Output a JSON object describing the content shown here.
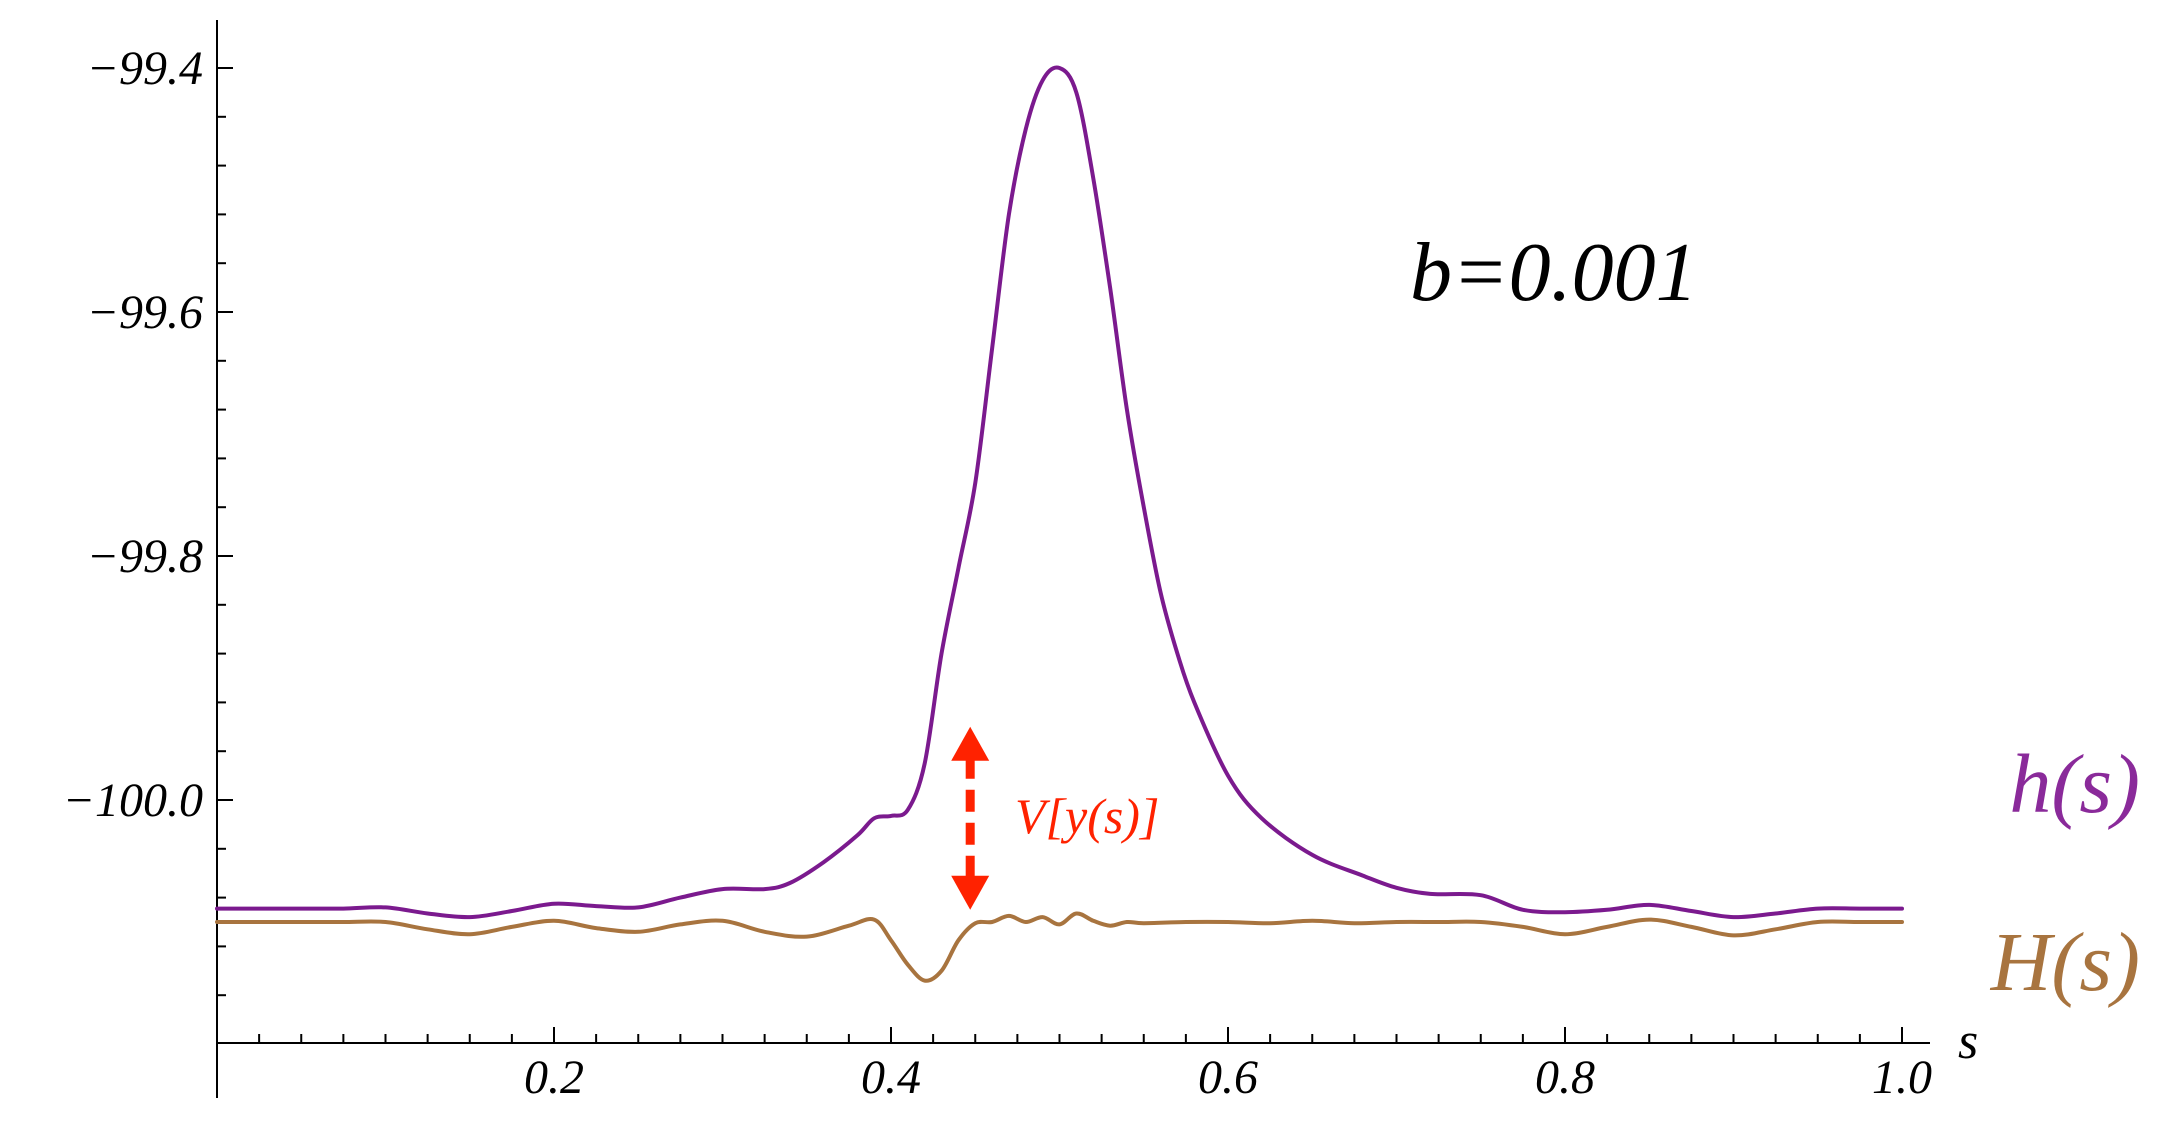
{
  "chart_data": {
    "type": "line",
    "xlabel": "s",
    "ylabel": "",
    "xlim": [
      0,
      1.0
    ],
    "ylim": [
      -100.25,
      -99.35
    ],
    "grid": false,
    "legend": "none",
    "x_ticks": [
      {
        "value": 0.2,
        "label": "0.2"
      },
      {
        "value": 0.4,
        "label": "0.4"
      },
      {
        "value": 0.6,
        "label": "0.6"
      },
      {
        "value": 0.8,
        "label": "0.8"
      },
      {
        "value": 1.0,
        "label": "1.0"
      }
    ],
    "y_ticks": [
      {
        "value": -99.4,
        "label": "−99.4"
      },
      {
        "value": -99.6,
        "label": "−99.6"
      },
      {
        "value": -99.8,
        "label": "−99.8"
      },
      {
        "value": -100.0,
        "label": "−100.0"
      }
    ],
    "parameter_label": "b=0.001",
    "annotation": {
      "text": "V[y(s)]",
      "x": 0.447,
      "y_top": -99.94,
      "y_bottom": -100.09,
      "color": "#ff2200"
    },
    "series": [
      {
        "name": "h(s)",
        "color": "#7b1a8e",
        "label_color": "#8a2a9a",
        "x": [
          0.0,
          0.025,
          0.05,
          0.075,
          0.1,
          0.125,
          0.15,
          0.175,
          0.2,
          0.225,
          0.25,
          0.275,
          0.3,
          0.325,
          0.34,
          0.36,
          0.38,
          0.39,
          0.4,
          0.41,
          0.42,
          0.43,
          0.44,
          0.45,
          0.46,
          0.47,
          0.48,
          0.49,
          0.5,
          0.51,
          0.52,
          0.53,
          0.54,
          0.55,
          0.56,
          0.57,
          0.58,
          0.6,
          0.62,
          0.65,
          0.68,
          0.7,
          0.72,
          0.75,
          0.775,
          0.8,
          0.825,
          0.85,
          0.875,
          0.9,
          0.925,
          0.95,
          0.975,
          1.0
        ],
        "values": [
          -100.089,
          -100.089,
          -100.089,
          -100.089,
          -100.088,
          -100.093,
          -100.096,
          -100.091,
          -100.085,
          -100.087,
          -100.088,
          -100.08,
          -100.073,
          -100.073,
          -100.068,
          -100.051,
          -100.029,
          -100.015,
          -100.013,
          -100.008,
          -99.97,
          -99.88,
          -99.81,
          -99.74,
          -99.63,
          -99.52,
          -99.45,
          -99.41,
          -99.4,
          -99.42,
          -99.49,
          -99.58,
          -99.68,
          -99.76,
          -99.83,
          -99.88,
          -99.92,
          -99.98,
          -100.015,
          -100.045,
          -100.062,
          -100.072,
          -100.077,
          -100.078,
          -100.09,
          -100.092,
          -100.09,
          -100.086,
          -100.091,
          -100.096,
          -100.093,
          -100.089,
          -100.089,
          -100.089
        ]
      },
      {
        "name": "H(s)",
        "color": "#a8743f",
        "label_color": "#a8743f",
        "x": [
          0.0,
          0.025,
          0.05,
          0.075,
          0.1,
          0.125,
          0.15,
          0.175,
          0.2,
          0.225,
          0.25,
          0.275,
          0.3,
          0.325,
          0.35,
          0.375,
          0.39,
          0.4,
          0.41,
          0.42,
          0.43,
          0.44,
          0.45,
          0.46,
          0.47,
          0.48,
          0.49,
          0.5,
          0.51,
          0.52,
          0.53,
          0.54,
          0.55,
          0.575,
          0.6,
          0.625,
          0.65,
          0.675,
          0.7,
          0.725,
          0.75,
          0.775,
          0.8,
          0.825,
          0.85,
          0.875,
          0.9,
          0.925,
          0.95,
          0.975,
          1.0
        ],
        "values": [
          -100.1,
          -100.1,
          -100.1,
          -100.1,
          -100.1,
          -100.106,
          -100.11,
          -100.104,
          -100.099,
          -100.105,
          -100.108,
          -100.102,
          -100.099,
          -100.108,
          -100.112,
          -100.103,
          -100.098,
          -100.115,
          -100.135,
          -100.148,
          -100.14,
          -100.115,
          -100.101,
          -100.1,
          -100.095,
          -100.1,
          -100.096,
          -100.102,
          -100.093,
          -100.099,
          -100.103,
          -100.1,
          -100.101,
          -100.1,
          -100.1,
          -100.101,
          -100.099,
          -100.101,
          -100.1,
          -100.1,
          -100.1,
          -100.104,
          -100.11,
          -100.104,
          -100.098,
          -100.104,
          -100.111,
          -100.106,
          -100.1,
          -100.1,
          -100.1
        ]
      }
    ]
  }
}
